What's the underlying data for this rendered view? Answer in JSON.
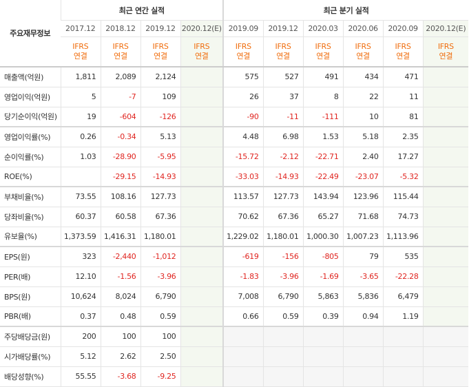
{
  "header": {
    "label": "주요재무정보",
    "annual_title": "최근 연간 실적",
    "quarter_title": "최근 분기 실적",
    "annual_periods": [
      "2017.12",
      "2018.12",
      "2019.12",
      "2020.12(E)"
    ],
    "quarter_periods": [
      "2019.09",
      "2019.12",
      "2020.03",
      "2020.06",
      "2020.09",
      "2020.12(E)"
    ],
    "basis_line1": "IFRS",
    "basis_line2": "연결"
  },
  "rows": [
    {
      "label": "매출액(억원)",
      "annual": [
        "1,811",
        "2,089",
        "2,124",
        ""
      ],
      "quarter": [
        "575",
        "527",
        "491",
        "434",
        "471",
        ""
      ]
    },
    {
      "label": "영업이익(억원)",
      "annual": [
        "5",
        "-7",
        "109",
        ""
      ],
      "quarter": [
        "26",
        "37",
        "8",
        "22",
        "11",
        ""
      ]
    },
    {
      "label": "당기순이익(억원)",
      "annual": [
        "19",
        "-604",
        "-126",
        ""
      ],
      "quarter": [
        "-90",
        "-11",
        "-111",
        "10",
        "81",
        ""
      ]
    },
    {
      "label": "영업이익률(%)",
      "annual": [
        "0.26",
        "-0.34",
        "5.13",
        ""
      ],
      "quarter": [
        "4.48",
        "6.98",
        "1.53",
        "5.18",
        "2.35",
        ""
      ]
    },
    {
      "label": "순이익률(%)",
      "annual": [
        "1.03",
        "-28.90",
        "-5.95",
        ""
      ],
      "quarter": [
        "-15.72",
        "-2.12",
        "-22.71",
        "2.40",
        "17.27",
        ""
      ]
    },
    {
      "label": "ROE(%)",
      "annual": [
        "",
        "-29.15",
        "-14.93",
        ""
      ],
      "quarter": [
        "-33.03",
        "-14.93",
        "-22.49",
        "-23.07",
        "-5.32",
        ""
      ]
    },
    {
      "label": "부채비율(%)",
      "annual": [
        "73.55",
        "108.16",
        "127.73",
        ""
      ],
      "quarter": [
        "113.57",
        "127.73",
        "143.94",
        "123.96",
        "115.44",
        ""
      ]
    },
    {
      "label": "당좌비율(%)",
      "annual": [
        "60.37",
        "60.58",
        "67.36",
        ""
      ],
      "quarter": [
        "70.62",
        "67.36",
        "65.27",
        "71.68",
        "74.73",
        ""
      ]
    },
    {
      "label": "유보율(%)",
      "annual": [
        "1,373.59",
        "1,416.31",
        "1,180.01",
        ""
      ],
      "quarter": [
        "1,229.02",
        "1,180.01",
        "1,000.30",
        "1,007.23",
        "1,113.96",
        ""
      ]
    },
    {
      "label": "EPS(원)",
      "annual": [
        "323",
        "-2,440",
        "-1,012",
        ""
      ],
      "quarter": [
        "-619",
        "-156",
        "-805",
        "79",
        "535",
        ""
      ]
    },
    {
      "label": "PER(배)",
      "annual": [
        "12.10",
        "-1.56",
        "-3.96",
        ""
      ],
      "quarter": [
        "-1.83",
        "-3.96",
        "-1.69",
        "-3.65",
        "-22.28",
        ""
      ]
    },
    {
      "label": "BPS(원)",
      "annual": [
        "10,624",
        "8,024",
        "6,790",
        ""
      ],
      "quarter": [
        "7,008",
        "6,790",
        "5,863",
        "5,836",
        "6,479",
        ""
      ]
    },
    {
      "label": "PBR(배)",
      "annual": [
        "0.37",
        "0.48",
        "0.59",
        ""
      ],
      "quarter": [
        "0.66",
        "0.59",
        "0.39",
        "0.94",
        "1.19",
        ""
      ]
    },
    {
      "label": "주당배당금(원)",
      "annual": [
        "200",
        "100",
        "100",
        ""
      ],
      "quarter": null
    },
    {
      "label": "시가배당률(%)",
      "annual": [
        "5.12",
        "2.62",
        "2.50",
        ""
      ],
      "quarter": null
    },
    {
      "label": "배당성향(%)",
      "annual": [
        "55.55",
        "-3.68",
        "-9.25",
        ""
      ],
      "quarter": null
    }
  ],
  "group_ends": [
    2,
    5,
    8,
    12
  ]
}
